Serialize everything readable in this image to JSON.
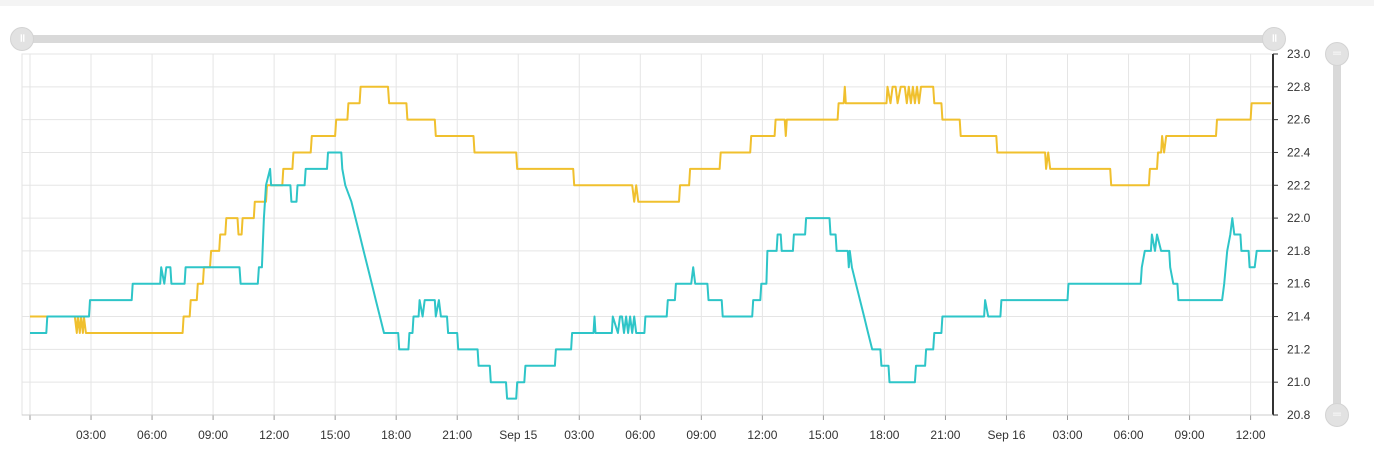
{
  "chart_data": {
    "type": "line",
    "title": "",
    "xlabel": "",
    "ylabel": "",
    "ylim": [
      20.8,
      23.0
    ],
    "y_ticks": [
      "20.8",
      "21.0",
      "21.2",
      "21.4",
      "21.6",
      "21.8",
      "22.0",
      "22.2",
      "22.4",
      "22.6",
      "22.8",
      "23.0"
    ],
    "x_ticks": [
      "03:00",
      "06:00",
      "09:00",
      "12:00",
      "15:00",
      "18:00",
      "21:00",
      "Sep 15",
      "03:00",
      "06:00",
      "09:00",
      "12:00",
      "15:00",
      "18:00",
      "21:00",
      "Sep 16",
      "03:00",
      "06:00",
      "09:00",
      "12:00"
    ],
    "grid": true,
    "y_axis_position": "right",
    "series": [
      {
        "color": "#f0c02e",
        "points": [
          [
            0.0,
            21.4
          ],
          [
            2.2,
            21.4
          ],
          [
            2.3,
            21.3
          ],
          [
            2.35,
            21.4
          ],
          [
            2.45,
            21.3
          ],
          [
            2.5,
            21.4
          ],
          [
            2.6,
            21.3
          ],
          [
            2.65,
            21.4
          ],
          [
            2.75,
            21.3
          ],
          [
            7.5,
            21.3
          ],
          [
            7.55,
            21.4
          ],
          [
            7.85,
            21.4
          ],
          [
            7.9,
            21.5
          ],
          [
            8.2,
            21.5
          ],
          [
            8.25,
            21.6
          ],
          [
            8.5,
            21.6
          ],
          [
            8.55,
            21.7
          ],
          [
            8.85,
            21.7
          ],
          [
            8.9,
            21.8
          ],
          [
            9.3,
            21.8
          ],
          [
            9.35,
            21.9
          ],
          [
            9.6,
            21.9
          ],
          [
            9.65,
            22.0
          ],
          [
            10.2,
            22.0
          ],
          [
            10.25,
            21.9
          ],
          [
            10.4,
            21.9
          ],
          [
            10.45,
            22.0
          ],
          [
            11.0,
            22.0
          ],
          [
            11.05,
            22.1
          ],
          [
            11.6,
            22.1
          ],
          [
            11.65,
            22.2
          ],
          [
            12.4,
            22.2
          ],
          [
            12.45,
            22.3
          ],
          [
            12.9,
            22.3
          ],
          [
            12.95,
            22.4
          ],
          [
            13.8,
            22.4
          ],
          [
            13.85,
            22.5
          ],
          [
            15.0,
            22.5
          ],
          [
            15.05,
            22.6
          ],
          [
            15.6,
            22.6
          ],
          [
            15.65,
            22.7
          ],
          [
            16.2,
            22.7
          ],
          [
            16.25,
            22.8
          ],
          [
            17.6,
            22.8
          ],
          [
            17.65,
            22.7
          ],
          [
            18.5,
            22.7
          ],
          [
            18.55,
            22.6
          ],
          [
            19.9,
            22.6
          ],
          [
            19.95,
            22.5
          ],
          [
            21.8,
            22.5
          ],
          [
            21.85,
            22.4
          ],
          [
            23.9,
            22.4
          ],
          [
            23.95,
            22.3
          ],
          [
            26.7,
            22.3
          ],
          [
            26.75,
            22.2
          ],
          [
            29.6,
            22.2
          ],
          [
            29.7,
            22.1
          ],
          [
            29.8,
            22.2
          ],
          [
            29.9,
            22.1
          ],
          [
            31.9,
            22.1
          ],
          [
            31.95,
            22.2
          ],
          [
            32.4,
            22.2
          ],
          [
            32.45,
            22.3
          ],
          [
            33.9,
            22.3
          ],
          [
            33.95,
            22.4
          ],
          [
            35.4,
            22.4
          ],
          [
            35.45,
            22.5
          ],
          [
            36.6,
            22.5
          ],
          [
            36.65,
            22.6
          ],
          [
            37.1,
            22.6
          ],
          [
            37.15,
            22.5
          ],
          [
            37.2,
            22.6
          ],
          [
            39.7,
            22.6
          ],
          [
            39.75,
            22.7
          ],
          [
            40.0,
            22.7
          ],
          [
            40.05,
            22.8
          ],
          [
            40.1,
            22.7
          ],
          [
            42.1,
            22.7
          ],
          [
            42.15,
            22.8
          ],
          [
            42.3,
            22.7
          ],
          [
            42.4,
            22.8
          ],
          [
            42.55,
            22.8
          ],
          [
            42.65,
            22.7
          ],
          [
            42.8,
            22.8
          ],
          [
            43.0,
            22.8
          ],
          [
            43.1,
            22.7
          ],
          [
            43.2,
            22.8
          ],
          [
            43.3,
            22.7
          ],
          [
            43.4,
            22.8
          ],
          [
            43.5,
            22.7
          ],
          [
            43.6,
            22.8
          ],
          [
            43.7,
            22.7
          ],
          [
            43.8,
            22.8
          ],
          [
            44.4,
            22.8
          ],
          [
            44.45,
            22.7
          ],
          [
            44.8,
            22.7
          ],
          [
            44.85,
            22.6
          ],
          [
            45.7,
            22.6
          ],
          [
            45.75,
            22.5
          ],
          [
            47.5,
            22.5
          ],
          [
            47.55,
            22.4
          ],
          [
            49.9,
            22.4
          ],
          [
            49.95,
            22.3
          ],
          [
            50.05,
            22.4
          ],
          [
            50.15,
            22.3
          ],
          [
            53.1,
            22.3
          ],
          [
            53.15,
            22.2
          ],
          [
            55.0,
            22.2
          ],
          [
            55.05,
            22.3
          ],
          [
            55.4,
            22.3
          ],
          [
            55.45,
            22.4
          ],
          [
            55.6,
            22.4
          ],
          [
            55.65,
            22.5
          ],
          [
            55.75,
            22.4
          ],
          [
            55.85,
            22.5
          ],
          [
            58.3,
            22.5
          ],
          [
            58.35,
            22.6
          ],
          [
            60.0,
            22.6
          ],
          [
            60.05,
            22.7
          ],
          [
            61.0,
            22.7
          ]
        ]
      },
      {
        "color": "#2ec5c8",
        "points": [
          [
            0.0,
            21.3
          ],
          [
            0.8,
            21.3
          ],
          [
            0.85,
            21.4
          ],
          [
            2.9,
            21.4
          ],
          [
            2.95,
            21.5
          ],
          [
            5.0,
            21.5
          ],
          [
            5.05,
            21.6
          ],
          [
            6.4,
            21.6
          ],
          [
            6.45,
            21.7
          ],
          [
            6.6,
            21.6
          ],
          [
            6.7,
            21.7
          ],
          [
            6.9,
            21.7
          ],
          [
            6.95,
            21.6
          ],
          [
            7.6,
            21.6
          ],
          [
            7.65,
            21.7
          ],
          [
            10.3,
            21.7
          ],
          [
            10.35,
            21.6
          ],
          [
            11.2,
            21.6
          ],
          [
            11.25,
            21.7
          ],
          [
            11.4,
            21.7
          ],
          [
            11.5,
            22.0
          ],
          [
            11.6,
            22.2
          ],
          [
            11.8,
            22.3
          ],
          [
            11.85,
            22.2
          ],
          [
            12.8,
            22.2
          ],
          [
            12.85,
            22.1
          ],
          [
            13.1,
            22.1
          ],
          [
            13.15,
            22.2
          ],
          [
            13.5,
            22.2
          ],
          [
            13.55,
            22.3
          ],
          [
            14.6,
            22.3
          ],
          [
            14.65,
            22.4
          ],
          [
            15.3,
            22.4
          ],
          [
            15.35,
            22.3
          ],
          [
            15.5,
            22.2
          ],
          [
            15.8,
            22.1
          ],
          [
            16.0,
            22.0
          ],
          [
            16.2,
            21.9
          ],
          [
            16.4,
            21.8
          ],
          [
            16.6,
            21.7
          ],
          [
            16.8,
            21.6
          ],
          [
            17.0,
            21.5
          ],
          [
            17.2,
            21.4
          ],
          [
            17.4,
            21.3
          ],
          [
            18.1,
            21.3
          ],
          [
            18.15,
            21.2
          ],
          [
            18.6,
            21.2
          ],
          [
            18.65,
            21.3
          ],
          [
            18.8,
            21.3
          ],
          [
            18.85,
            21.4
          ],
          [
            19.1,
            21.4
          ],
          [
            19.15,
            21.5
          ],
          [
            19.3,
            21.4
          ],
          [
            19.4,
            21.5
          ],
          [
            19.9,
            21.5
          ],
          [
            19.95,
            21.4
          ],
          [
            20.1,
            21.5
          ],
          [
            20.2,
            21.4
          ],
          [
            20.5,
            21.4
          ],
          [
            20.55,
            21.3
          ],
          [
            21.0,
            21.3
          ],
          [
            21.05,
            21.2
          ],
          [
            22.0,
            21.2
          ],
          [
            22.05,
            21.1
          ],
          [
            22.6,
            21.1
          ],
          [
            22.65,
            21.0
          ],
          [
            23.4,
            21.0
          ],
          [
            23.45,
            20.9
          ],
          [
            23.9,
            20.9
          ],
          [
            23.95,
            21.0
          ],
          [
            24.3,
            21.0
          ],
          [
            24.35,
            21.1
          ],
          [
            25.8,
            21.1
          ],
          [
            25.85,
            21.2
          ],
          [
            26.6,
            21.2
          ],
          [
            26.65,
            21.3
          ],
          [
            27.7,
            21.3
          ],
          [
            27.75,
            21.4
          ],
          [
            27.8,
            21.3
          ],
          [
            28.6,
            21.3
          ],
          [
            28.65,
            21.4
          ],
          [
            28.9,
            21.3
          ],
          [
            29.0,
            21.4
          ],
          [
            29.1,
            21.4
          ],
          [
            29.2,
            21.3
          ],
          [
            29.3,
            21.4
          ],
          [
            29.4,
            21.3
          ],
          [
            29.5,
            21.4
          ],
          [
            29.6,
            21.3
          ],
          [
            29.7,
            21.4
          ],
          [
            29.8,
            21.3
          ],
          [
            30.2,
            21.3
          ],
          [
            30.25,
            21.4
          ],
          [
            31.3,
            21.4
          ],
          [
            31.35,
            21.5
          ],
          [
            31.7,
            21.5
          ],
          [
            31.75,
            21.6
          ],
          [
            32.5,
            21.6
          ],
          [
            32.6,
            21.7
          ],
          [
            32.7,
            21.6
          ],
          [
            33.3,
            21.6
          ],
          [
            33.35,
            21.5
          ],
          [
            34.0,
            21.5
          ],
          [
            34.05,
            21.4
          ],
          [
            35.5,
            21.4
          ],
          [
            35.55,
            21.5
          ],
          [
            35.9,
            21.5
          ],
          [
            35.95,
            21.6
          ],
          [
            36.2,
            21.6
          ],
          [
            36.25,
            21.8
          ],
          [
            36.7,
            21.8
          ],
          [
            36.75,
            21.9
          ],
          [
            36.9,
            21.9
          ],
          [
            36.95,
            21.8
          ],
          [
            37.5,
            21.8
          ],
          [
            37.55,
            21.9
          ],
          [
            38.1,
            21.9
          ],
          [
            38.15,
            22.0
          ],
          [
            39.3,
            22.0
          ],
          [
            39.35,
            21.9
          ],
          [
            39.6,
            21.9
          ],
          [
            39.65,
            21.8
          ],
          [
            40.2,
            21.8
          ],
          [
            40.25,
            21.7
          ],
          [
            40.3,
            21.8
          ],
          [
            40.4,
            21.7
          ],
          [
            40.6,
            21.6
          ],
          [
            40.8,
            21.5
          ],
          [
            41.0,
            21.4
          ],
          [
            41.2,
            21.3
          ],
          [
            41.4,
            21.2
          ],
          [
            41.8,
            21.2
          ],
          [
            41.85,
            21.1
          ],
          [
            42.2,
            21.1
          ],
          [
            42.25,
            21.0
          ],
          [
            43.5,
            21.0
          ],
          [
            43.55,
            21.1
          ],
          [
            44.0,
            21.1
          ],
          [
            44.05,
            21.2
          ],
          [
            44.4,
            21.2
          ],
          [
            44.45,
            21.3
          ],
          [
            44.8,
            21.3
          ],
          [
            44.85,
            21.4
          ],
          [
            46.9,
            21.4
          ],
          [
            46.95,
            21.5
          ],
          [
            47.1,
            21.4
          ],
          [
            47.7,
            21.4
          ],
          [
            47.75,
            21.5
          ],
          [
            51.0,
            21.5
          ],
          [
            51.05,
            21.6
          ],
          [
            54.6,
            21.6
          ],
          [
            54.65,
            21.7
          ],
          [
            54.8,
            21.8
          ],
          [
            55.1,
            21.8
          ],
          [
            55.15,
            21.9
          ],
          [
            55.3,
            21.8
          ],
          [
            55.4,
            21.9
          ],
          [
            55.6,
            21.8
          ],
          [
            56.0,
            21.8
          ],
          [
            56.05,
            21.7
          ],
          [
            56.2,
            21.6
          ],
          [
            56.4,
            21.6
          ],
          [
            56.45,
            21.5
          ],
          [
            58.6,
            21.5
          ],
          [
            58.7,
            21.6
          ],
          [
            58.85,
            21.8
          ],
          [
            59.0,
            21.9
          ],
          [
            59.1,
            22.0
          ],
          [
            59.2,
            21.9
          ],
          [
            59.5,
            21.9
          ],
          [
            59.55,
            21.8
          ],
          [
            59.9,
            21.8
          ],
          [
            59.95,
            21.7
          ],
          [
            60.2,
            21.7
          ],
          [
            60.3,
            21.8
          ],
          [
            61.0,
            21.8
          ]
        ]
      }
    ]
  }
}
